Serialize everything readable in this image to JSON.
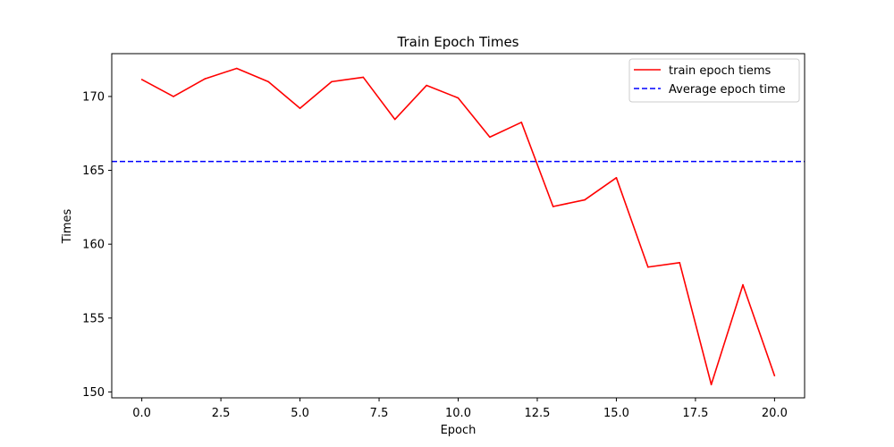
{
  "chart_data": {
    "type": "line",
    "title": "Train Epoch Times",
    "xlabel": "Epoch",
    "ylabel": "Times",
    "xlim": [
      -0.95,
      20.95
    ],
    "ylim": [
      149.6,
      172.9
    ],
    "xticks": [
      0.0,
      2.5,
      5.0,
      7.5,
      10.0,
      12.5,
      15.0,
      17.5,
      20.0
    ],
    "xtick_labels": [
      "0.0",
      "2.5",
      "5.0",
      "7.5",
      "10.0",
      "12.5",
      "15.0",
      "17.5",
      "20.0"
    ],
    "yticks": [
      150,
      155,
      160,
      165,
      170
    ],
    "ytick_labels": [
      "150",
      "155",
      "160",
      "165",
      "170"
    ],
    "grid": false,
    "legend_position": "top-right",
    "series": [
      {
        "name": "train epoch tiems",
        "color": "#ff0000",
        "style": "solid",
        "x": [
          0,
          1,
          2,
          3,
          4,
          5,
          6,
          7,
          8,
          9,
          10,
          11,
          12,
          13,
          14,
          15,
          16,
          17,
          18,
          19,
          20
        ],
        "y": [
          171.15,
          170.0,
          171.2,
          171.9,
          171.0,
          169.2,
          171.0,
          171.3,
          168.45,
          170.75,
          169.9,
          167.25,
          168.25,
          162.55,
          163.0,
          164.5,
          158.45,
          158.75,
          150.5,
          157.25,
          151.1
        ]
      },
      {
        "name": "Average epoch time",
        "color": "#0000ff",
        "style": "dashed",
        "type": "hline",
        "y": 165.6
      }
    ]
  }
}
